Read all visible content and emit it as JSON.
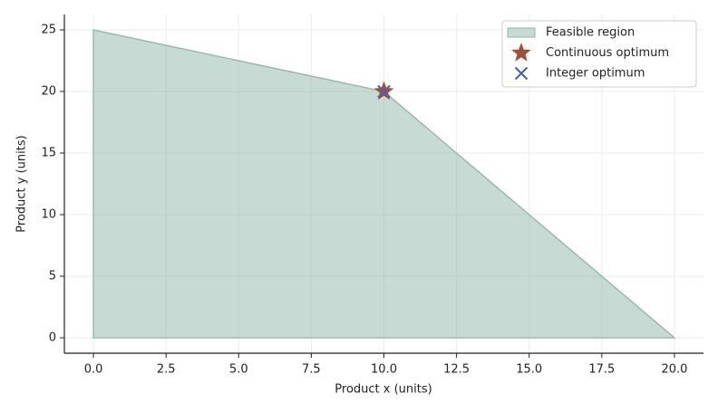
{
  "chart_data": {
    "type": "area",
    "x_label": "Product x (units)",
    "y_label": "Product y (units)",
    "xlim": [
      -1,
      21
    ],
    "ylim": [
      -1.25,
      26.25
    ],
    "xticks": [
      {
        "value": 0,
        "label": "0.0"
      },
      2.5,
      {
        "value": 5,
        "label": "5.0"
      },
      7.5,
      {
        "value": 10,
        "label": "10.0"
      },
      12.5,
      {
        "value": 15,
        "label": "15.0"
      },
      17.5,
      {
        "value": 20,
        "label": "20.0"
      }
    ],
    "yticks": [
      0,
      5,
      10,
      15,
      20,
      25
    ],
    "grid": true,
    "legend": "upper right",
    "series": [
      {
        "name": "Feasible region",
        "type": "area",
        "color": "#8fb5a8",
        "x": [
          0,
          0,
          10,
          20
        ],
        "values": [
          0,
          25,
          20,
          0
        ]
      },
      {
        "name": "Continuous optimum",
        "type": "scatter",
        "marker": "star",
        "color": "#a0503a",
        "x": [
          10
        ],
        "values": [
          20
        ]
      },
      {
        "name": "Integer optimum",
        "type": "scatter",
        "marker": "x",
        "color": "#4a62b0",
        "x": [
          10
        ],
        "values": [
          20
        ]
      }
    ]
  }
}
